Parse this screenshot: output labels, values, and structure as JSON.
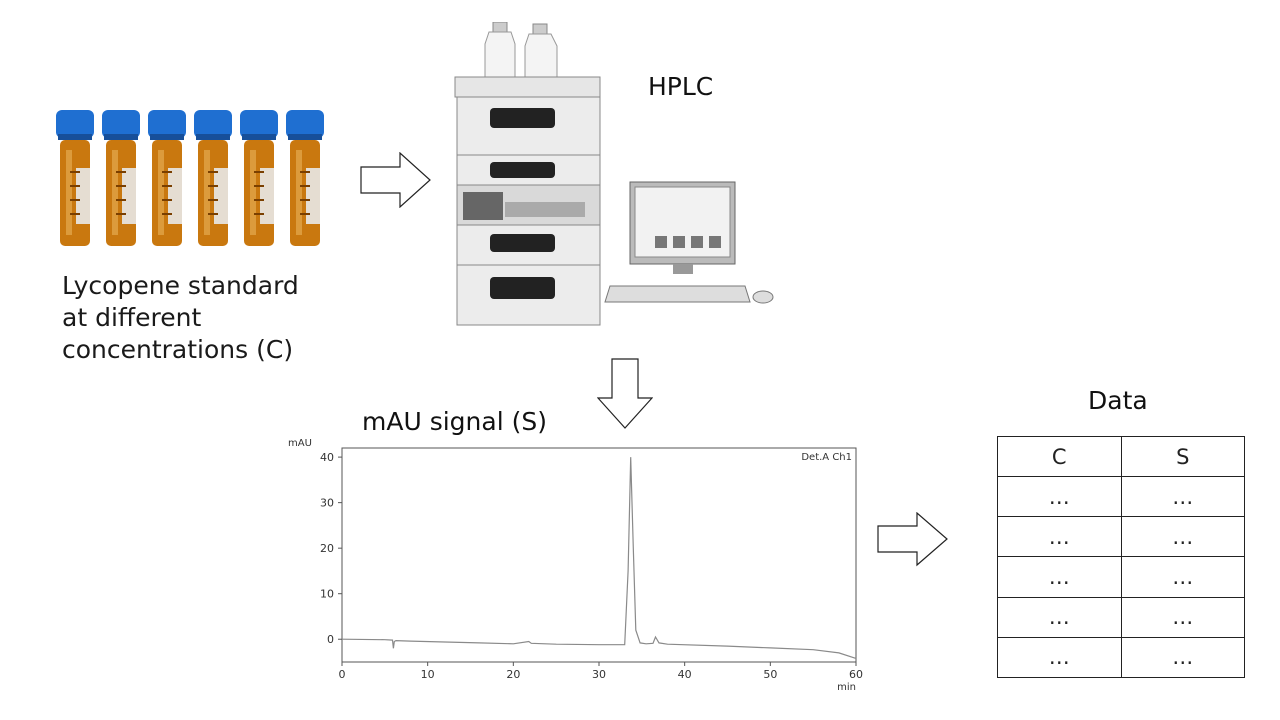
{
  "vials": {
    "count": 6,
    "label_lines": [
      "Lycopene  standard",
      "at different",
      "concentrations (C)"
    ],
    "cap_color": "#1f6fd1",
    "glass_color": "#c9780f"
  },
  "hplc": {
    "label": "HPLC"
  },
  "chromatogram": {
    "title": "mAU signal (S)",
    "legend": "Det.A Ch1"
  },
  "data_table": {
    "title": "Data",
    "headers": [
      "C",
      "S"
    ],
    "rows": [
      [
        "…",
        "…"
      ],
      [
        "…",
        "…"
      ],
      [
        "…",
        "…"
      ],
      [
        "…",
        "…"
      ],
      [
        "…",
        "…"
      ]
    ]
  },
  "chart_data": {
    "type": "line",
    "ylabel": "mAU",
    "xlabel": "min",
    "xlim": [
      0,
      60
    ],
    "ylim": [
      -5,
      42
    ],
    "x_ticks": [
      0,
      10,
      20,
      30,
      40,
      50,
      60
    ],
    "y_ticks": [
      0,
      10,
      20,
      30,
      40
    ],
    "grid": false,
    "series": [
      {
        "x": [
          0,
          5,
          5.9,
          6.0,
          6.1,
          6.3,
          8,
          12,
          16,
          20,
          21.8,
          22.1,
          25,
          30,
          33,
          33.4,
          33.7,
          34.0,
          34.3,
          34.8,
          35.5,
          36.3,
          36.6,
          37.0,
          38,
          45,
          50,
          55,
          58,
          60
        ],
        "y": [
          0,
          -0.1,
          -0.2,
          -2.0,
          -0.5,
          -0.3,
          -0.4,
          -0.6,
          -0.8,
          -1.0,
          -0.5,
          -0.9,
          -1.1,
          -1.2,
          -1.2,
          15,
          40,
          20,
          2,
          -0.8,
          -1.0,
          -0.9,
          0.5,
          -0.8,
          -1.1,
          -1.5,
          -1.9,
          -2.3,
          -3.0,
          -4.2
        ]
      }
    ]
  }
}
